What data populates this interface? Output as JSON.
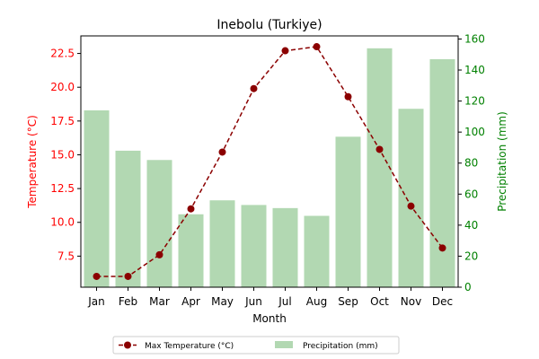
{
  "chart_data": {
    "type": "bar+line",
    "title": "Inebolu (Turkiye)",
    "xlabel": "Month",
    "ylabel_left": "Temperature (°C)",
    "ylabel_right": "Precipitation (mm)",
    "categories": [
      "Jan",
      "Feb",
      "Mar",
      "Apr",
      "May",
      "Jun",
      "Jul",
      "Aug",
      "Sep",
      "Oct",
      "Nov",
      "Dec"
    ],
    "series": [
      {
        "name": "Max Temperature (°C)",
        "type": "line",
        "axis": "left",
        "values": [
          6.0,
          6.0,
          7.6,
          11.0,
          15.2,
          19.9,
          22.7,
          23.0,
          19.3,
          15.4,
          11.2,
          8.1
        ],
        "color": "#8b0000"
      },
      {
        "name": "Precipitation (mm)",
        "type": "bar",
        "axis": "right",
        "values": [
          114,
          88,
          82,
          47,
          56,
          53,
          51,
          46,
          97,
          154,
          115,
          147
        ],
        "color": "#b2d8b2"
      }
    ],
    "ylim_left": [
      5.2,
      23.8
    ],
    "yticks_left": [
      "7.5",
      "10.0",
      "12.5",
      "15.0",
      "17.5",
      "20.0",
      "22.5"
    ],
    "ylim_right": [
      0,
      162
    ],
    "yticks_right": [
      "0",
      "20",
      "40",
      "60",
      "80",
      "100",
      "120",
      "140",
      "160"
    ],
    "left_axis_color": "#ff0000",
    "right_axis_color": "#008000",
    "grid": false,
    "legend_placement": "bottom-center"
  }
}
